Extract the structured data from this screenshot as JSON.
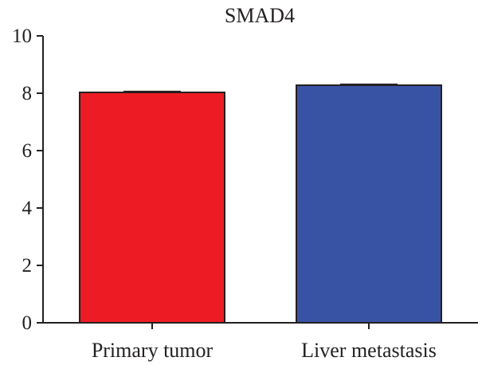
{
  "chart_data": {
    "type": "bar",
    "title": "SMAD4",
    "xlabel": "",
    "ylabel": "",
    "categories": [
      "Primary tumor",
      "Liver metastasis"
    ],
    "values": [
      8.03,
      8.28
    ],
    "error": [
      0.03,
      0.03
    ],
    "colors": [
      "#ed1c24",
      "#3953a4"
    ],
    "ylim": [
      0,
      10
    ],
    "yticks": [
      0,
      2,
      4,
      6,
      8,
      10
    ],
    "grid": false,
    "legend": "none"
  }
}
